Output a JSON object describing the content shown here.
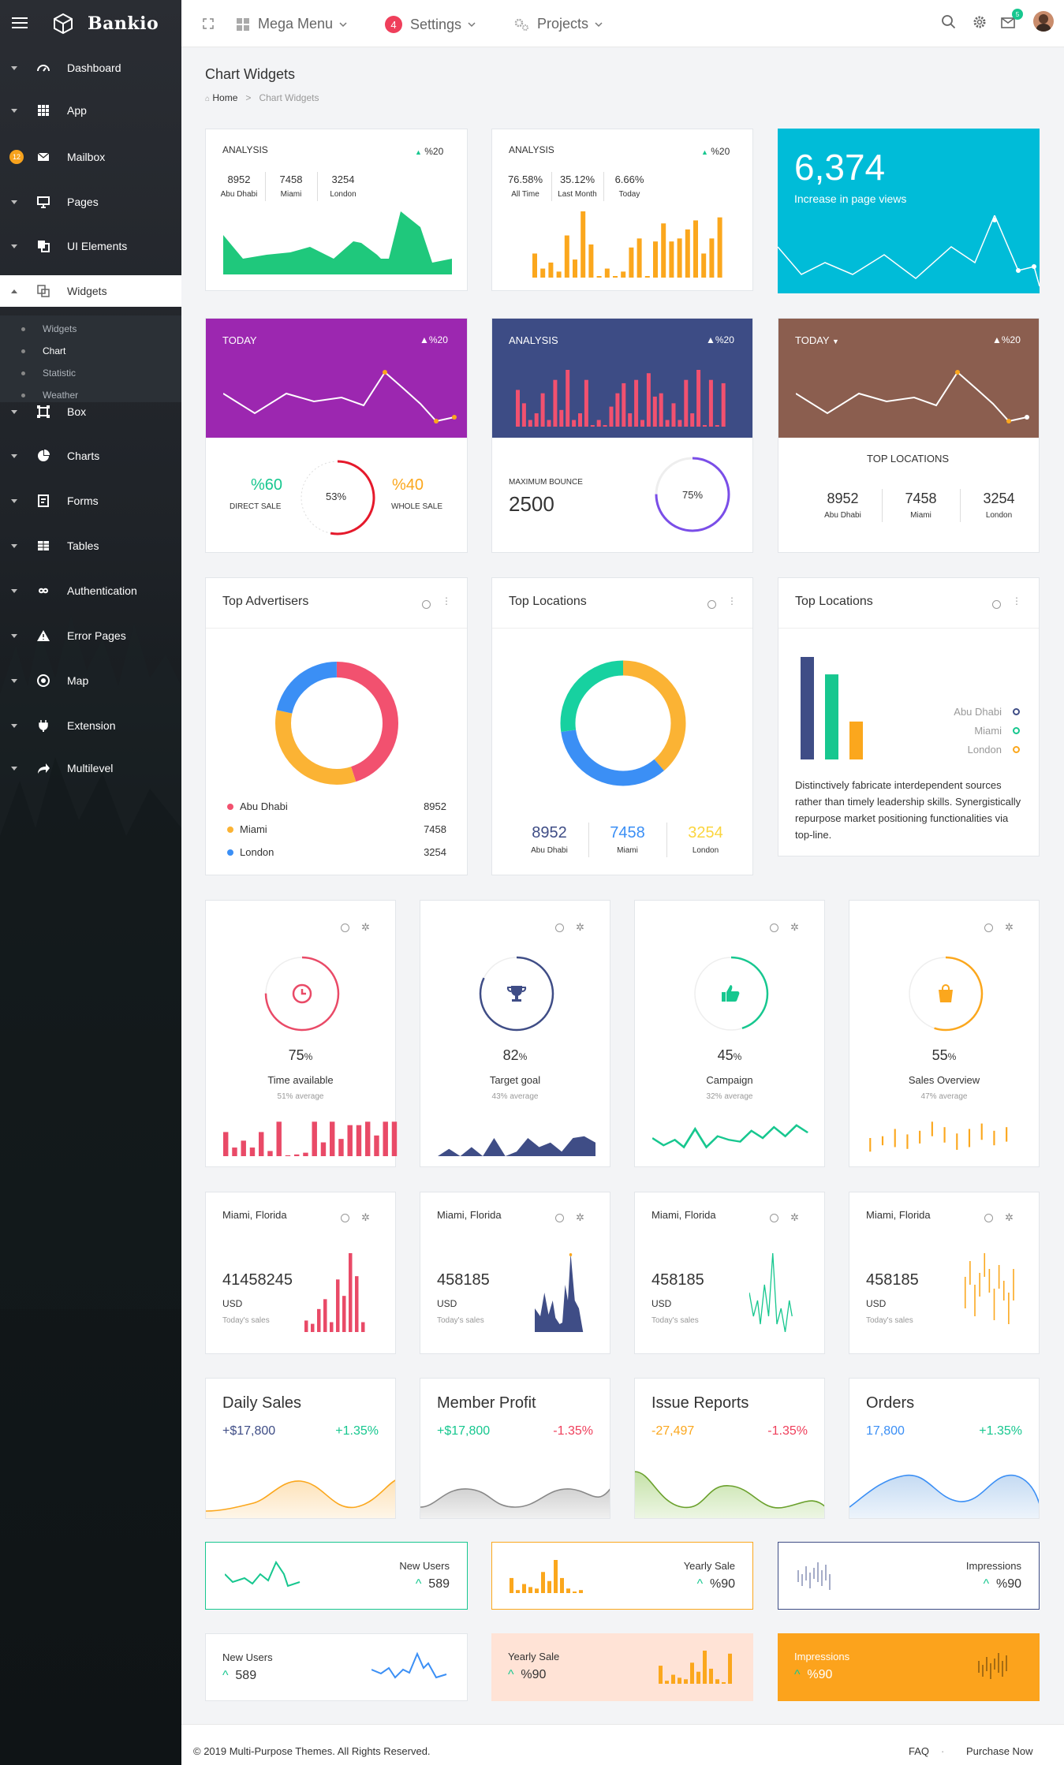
{
  "sidebar": {
    "brand": "Bankio",
    "items": [
      {
        "label": "Dashboard",
        "icon": "speedometer-icon"
      },
      {
        "label": "App",
        "icon": "grid-icon"
      },
      {
        "label": "Mailbox",
        "icon": "mail-icon",
        "badge": "12"
      },
      {
        "label": "Pages",
        "icon": "monitor-icon"
      },
      {
        "label": "UI Elements",
        "icon": "copy-icon"
      },
      {
        "label": "Widgets",
        "icon": "widgets-icon"
      },
      {
        "label": "Box",
        "icon": "box-icon"
      },
      {
        "label": "Charts",
        "icon": "pie-icon"
      },
      {
        "label": "Forms",
        "icon": "form-icon"
      },
      {
        "label": "Tables",
        "icon": "table-icon"
      },
      {
        "label": "Authentication",
        "icon": "infinity-icon"
      },
      {
        "label": "Error Pages",
        "icon": "warning-icon"
      },
      {
        "label": "Map",
        "icon": "target-icon"
      },
      {
        "label": "Extension",
        "icon": "plug-icon"
      },
      {
        "label": "Multilevel",
        "icon": "share-icon"
      }
    ],
    "submenu": [
      "Widgets",
      "Chart",
      "Statistic",
      "Weather"
    ]
  },
  "header": {
    "mega_menu": "Mega Menu",
    "settings_badge": "4",
    "settings": "Settings",
    "projects": "Projects",
    "mail_badge": "5"
  },
  "page": {
    "title": "Chart Widgets",
    "crumb_home": "Home",
    "crumb_sep": ">",
    "crumb_current": "Chart Widgets"
  },
  "row1": {
    "a": {
      "title": "ANALYSIS",
      "delta": "%20",
      "stats": [
        {
          "v": "8952",
          "l": "Abu Dhabi"
        },
        {
          "v": "7458",
          "l": "Miami"
        },
        {
          "v": "3254",
          "l": "London"
        }
      ]
    },
    "b": {
      "title": "ANALYSIS",
      "delta": "%20",
      "stats": [
        {
          "v": "76.58%",
          "l": "All Time"
        },
        {
          "v": "35.12%",
          "l": "Last Month"
        },
        {
          "v": "6.66%",
          "l": "Today"
        }
      ],
      "bars": [
        8,
        3,
        5,
        2,
        14,
        6,
        22,
        11,
        0,
        3,
        0,
        2,
        10,
        13,
        0,
        12,
        18,
        12,
        13,
        16,
        19,
        8,
        13,
        20
      ]
    },
    "c": {
      "value": "6,374",
      "label": "Increase in page views"
    }
  },
  "row2": {
    "a": {
      "title": "TODAY",
      "delta": "%20",
      "left_val": "%60",
      "left_lbl": "DIRECT SALE",
      "ring": "53%",
      "right_val": "%40",
      "right_lbl": "WHOLE SALE",
      "ring_pct": 53
    },
    "b": {
      "title": "ANALYSIS",
      "delta": "%20",
      "min_lbl": "MAXIMUM BOUNCE",
      "min_val": "2500",
      "ring": "75%",
      "ring_pct": 75,
      "bars": [
        11,
        7,
        2,
        4,
        10,
        2,
        14,
        5,
        17,
        2,
        4,
        14,
        0,
        2,
        0,
        6,
        10,
        13,
        4,
        14,
        2,
        16,
        9,
        10,
        2,
        7,
        2,
        14,
        4,
        17,
        0,
        14,
        0,
        13
      ]
    },
    "c": {
      "title": "TODAY",
      "delta": "%20",
      "sub": "TOP LOCATIONS",
      "stats": [
        {
          "v": "8952",
          "l": "Abu Dhabi"
        },
        {
          "v": "7458",
          "l": "Miami"
        },
        {
          "v": "3254",
          "l": "London"
        }
      ]
    }
  },
  "row3": {
    "a": {
      "title": "Top Advertisers",
      "legend": [
        {
          "n": "Abu Dhabi",
          "v": "8952",
          "c": "#f2516f"
        },
        {
          "n": "Miami",
          "v": "7458",
          "c": "#fbb334"
        },
        {
          "n": "London",
          "v": "3254",
          "c": "#3b8ff5"
        }
      ]
    },
    "b": {
      "title": "Top Locations",
      "stats": [
        {
          "v": "8952",
          "l": "Abu Dhabi",
          "c": "#3f4d86"
        },
        {
          "v": "7458",
          "l": "Miami",
          "c": "#3b8ff5"
        },
        {
          "v": "3254",
          "l": "London",
          "c": "#fbd53f"
        }
      ]
    },
    "c": {
      "title": "Top Locations",
      "legend": [
        {
          "n": "Abu Dhabi",
          "c": "#3f4d86"
        },
        {
          "n": "Miami",
          "c": "#17c78f"
        },
        {
          "n": "London",
          "c": "#fba71d"
        }
      ],
      "text": "Distinctively fabricate interdependent sources rather than timely leadership skills. Synergistically repurpose market positioning functionalities via top-line.",
      "bars": [
        {
          "v": 100,
          "c": "#3f4d86"
        },
        {
          "v": 83,
          "c": "#17c78f"
        },
        {
          "v": 37,
          "c": "#fba71d"
        }
      ]
    }
  },
  "row4": [
    {
      "pct": "75",
      "unit": "%",
      "label": "Time available",
      "avg": "51% average",
      "color": "#e94a67",
      "icon": "clock-icon"
    },
    {
      "pct": "82",
      "unit": "%",
      "label": "Target goal",
      "avg": "43% average",
      "color": "#3f4d86",
      "icon": "trophy-icon"
    },
    {
      "pct": "45",
      "unit": "%",
      "label": "Campaign",
      "avg": "32% average",
      "color": "#17c78f",
      "icon": "thumbs-up-icon"
    },
    {
      "pct": "55",
      "unit": "%",
      "label": "Sales Overview",
      "avg": "47% average",
      "color": "#fba71d",
      "icon": "shopping-bag-icon"
    }
  ],
  "row5": [
    {
      "city": "Miami, Florida",
      "value": "41458245",
      "cur": "USD",
      "sub": "Today's sales",
      "color": "#e94a67"
    },
    {
      "city": "Miami, Florida",
      "value": "458185",
      "cur": "USD",
      "sub": "Today's sales",
      "color": "#3f4d86"
    },
    {
      "city": "Miami, Florida",
      "value": "458185",
      "cur": "USD",
      "sub": "Today's sales",
      "color": "#17c78f"
    },
    {
      "city": "Miami, Florida",
      "value": "458185",
      "cur": "USD",
      "sub": "Today's sales",
      "color": "#fba71d"
    }
  ],
  "row6": [
    {
      "title": "Daily Sales",
      "left": "+$17,800",
      "right": "+1.35%",
      "lc": "#3f4d86",
      "rc": "#17c78f",
      "color": "#fba71d"
    },
    {
      "title": "Member Profit",
      "left": "+$17,800",
      "right": "-1.35%",
      "lc": "#17c78f",
      "rc": "#ef3f5b",
      "color": "#888"
    },
    {
      "title": "Issue Reports",
      "left": "-27,497",
      "right": "-1.35%",
      "lc": "#fba71d",
      "rc": "#ef3f5b",
      "color": "#6aa02c"
    },
    {
      "title": "Orders",
      "left": "17,800",
      "right": "+1.35%",
      "lc": "#3b8ff5",
      "rc": "#17c78f",
      "color": "#3b8ff5"
    }
  ],
  "row7": [
    {
      "label": "New Users",
      "value": "589",
      "border": "#17c78f"
    },
    {
      "label": "Yearly Sale",
      "value": "%90",
      "border": "#fba71d"
    },
    {
      "label": "Impressions",
      "value": "%90",
      "border": "#3f4d86"
    }
  ],
  "row8": [
    {
      "label": "New Users",
      "value": "589"
    },
    {
      "label": "Yearly Sale",
      "value": "%90"
    },
    {
      "label": "Impressions",
      "value": "%90"
    }
  ],
  "footer": {
    "copyright": "© 2019 Multi-Purpose Themes. All Rights Reserved.",
    "faq": "FAQ",
    "dot": "·",
    "purchase": "Purchase Now"
  }
}
